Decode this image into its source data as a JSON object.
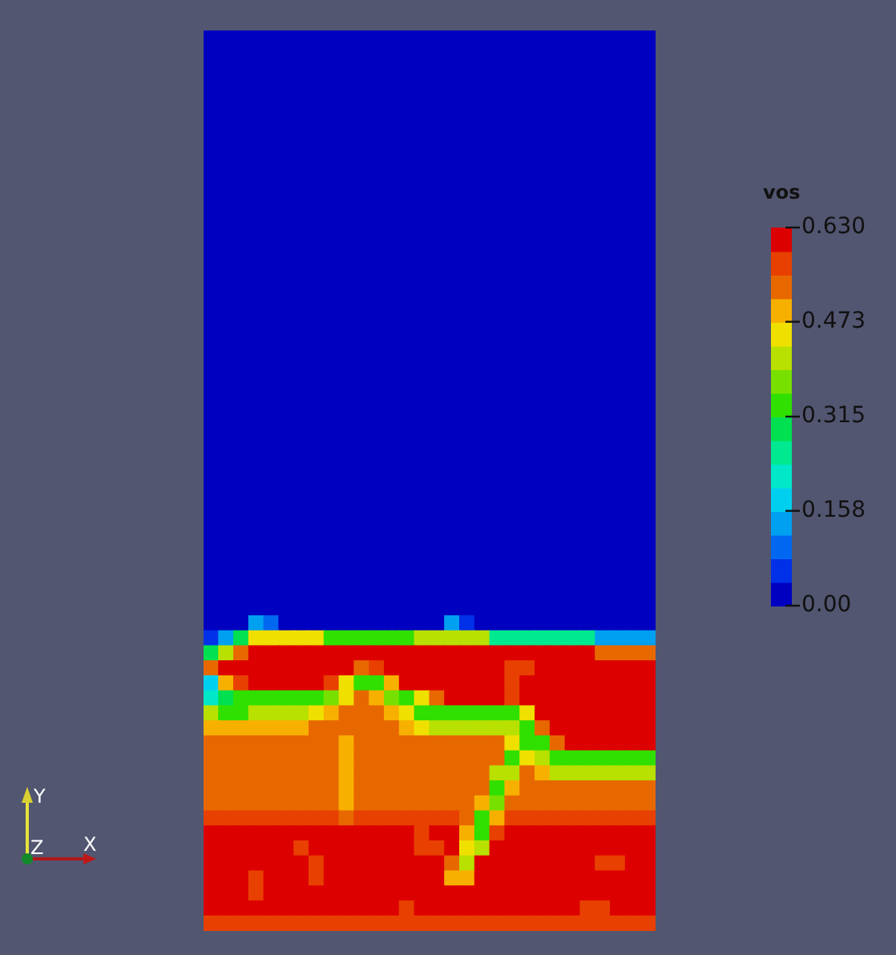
{
  "chart_data": {
    "type": "heatmap",
    "categories": [
      null,
      null,
      null,
      null,
      null,
      null,
      null,
      null,
      null,
      null,
      null,
      null,
      null,
      null,
      null,
      null,
      null,
      null,
      null,
      null,
      null,
      null,
      null,
      null,
      null,
      null,
      null,
      null,
      null,
      null
    ],
    "y_categories": [
      null,
      null,
      null,
      null,
      null,
      null,
      null,
      null,
      null,
      null,
      null,
      null,
      null,
      null,
      null,
      null,
      null,
      null,
      null,
      null,
      null,
      null,
      null,
      null,
      null,
      null,
      null,
      null,
      null,
      null,
      null,
      null,
      null,
      null,
      null,
      null,
      null,
      null,
      null,
      null,
      null,
      null,
      null,
      null,
      null,
      null,
      null,
      null,
      null,
      null,
      null,
      null,
      null,
      null,
      null,
      null,
      null,
      null,
      null,
      null
    ],
    "cells": [
      [
        0,
        0,
        0,
        0,
        0,
        0,
        0,
        0,
        0,
        0,
        0,
        0,
        0,
        0,
        0,
        0,
        0,
        0,
        0,
        0,
        0,
        0,
        0,
        0,
        0,
        0,
        0,
        0,
        0,
        0
      ],
      [
        0,
        0,
        0,
        0,
        0,
        0,
        0,
        0,
        0,
        0,
        0,
        0,
        0,
        0,
        0,
        0,
        0,
        0,
        0,
        0,
        0,
        0,
        0,
        0,
        0,
        0,
        0,
        0,
        0,
        0
      ],
      [
        0,
        0,
        0,
        0,
        0,
        0,
        0,
        0,
        0,
        0,
        0,
        0,
        0,
        0,
        0,
        0,
        0,
        0,
        0,
        0,
        0,
        0,
        0,
        0,
        0,
        0,
        0,
        0,
        0,
        0
      ],
      [
        0,
        0,
        0,
        0,
        0,
        0,
        0,
        0,
        0,
        0,
        0,
        0,
        0,
        0,
        0,
        0,
        0,
        0,
        0,
        0,
        0,
        0,
        0,
        0,
        0,
        0,
        0,
        0,
        0,
        0
      ],
      [
        0,
        0,
        0,
        0,
        0,
        0,
        0,
        0,
        0,
        0,
        0,
        0,
        0,
        0,
        0,
        0,
        0,
        0,
        0,
        0,
        0,
        0,
        0,
        0,
        0,
        0,
        0,
        0,
        0,
        0
      ],
      [
        0,
        0,
        0,
        0,
        0,
        0,
        0,
        0,
        0,
        0,
        0,
        0,
        0,
        0,
        0,
        0,
        0,
        0,
        0,
        0,
        0,
        0,
        0,
        0,
        0,
        0,
        0,
        0,
        0,
        0
      ],
      [
        0,
        0,
        0,
        0,
        0,
        0,
        0,
        0,
        0,
        0,
        0,
        0,
        0,
        0,
        0,
        0,
        0,
        0,
        0,
        0,
        0,
        0,
        0,
        0,
        0,
        0,
        0,
        0,
        0,
        0
      ],
      [
        0,
        0,
        0,
        0,
        0,
        0,
        0,
        0,
        0,
        0,
        0,
        0,
        0,
        0,
        0,
        0,
        0,
        0,
        0,
        0,
        0,
        0,
        0,
        0,
        0,
        0,
        0,
        0,
        0,
        0
      ],
      [
        0,
        0,
        0,
        0,
        0,
        0,
        0,
        0,
        0,
        0,
        0,
        0,
        0,
        0,
        0,
        0,
        0,
        0,
        0,
        0,
        0,
        0,
        0,
        0,
        0,
        0,
        0,
        0,
        0,
        0
      ],
      [
        0,
        0,
        0,
        0,
        0,
        0,
        0,
        0,
        0,
        0,
        0,
        0,
        0,
        0,
        0,
        0,
        0,
        0,
        0,
        0,
        0,
        0,
        0,
        0,
        0,
        0,
        0,
        0,
        0,
        0
      ],
      [
        0,
        0,
        0,
        0,
        0,
        0,
        0,
        0,
        0,
        0,
        0,
        0,
        0,
        0,
        0,
        0,
        0,
        0,
        0,
        0,
        0,
        0,
        0,
        0,
        0,
        0,
        0,
        0,
        0,
        0
      ],
      [
        0,
        0,
        0,
        0,
        0,
        0,
        0,
        0,
        0,
        0,
        0,
        0,
        0,
        0,
        0,
        0,
        0,
        0,
        0,
        0,
        0,
        0,
        0,
        0,
        0,
        0,
        0,
        0,
        0,
        0
      ],
      [
        0,
        0,
        0,
        0,
        0,
        0,
        0,
        0,
        0,
        0,
        0,
        0,
        0,
        0,
        0,
        0,
        0,
        0,
        0,
        0,
        0,
        0,
        0,
        0,
        0,
        0,
        0,
        0,
        0,
        0
      ],
      [
        0,
        0,
        0,
        0,
        0,
        0,
        0,
        0,
        0,
        0,
        0,
        0,
        0,
        0,
        0,
        0,
        0,
        0,
        0,
        0,
        0,
        0,
        0,
        0,
        0,
        0,
        0,
        0,
        0,
        0
      ],
      [
        0,
        0,
        0,
        0,
        0,
        0,
        0,
        0,
        0,
        0,
        0,
        0,
        0,
        0,
        0,
        0,
        0,
        0,
        0,
        0,
        0,
        0,
        0,
        0,
        0,
        0,
        0,
        0,
        0,
        0
      ],
      [
        0,
        0,
        0,
        0,
        0,
        0,
        0,
        0,
        0,
        0,
        0,
        0,
        0,
        0,
        0,
        0,
        0,
        0,
        0,
        0,
        0,
        0,
        0,
        0,
        0,
        0,
        0,
        0,
        0,
        0
      ],
      [
        0,
        0,
        0,
        0,
        0,
        0,
        0,
        0,
        0,
        0,
        0,
        0,
        0,
        0,
        0,
        0,
        0,
        0,
        0,
        0,
        0,
        0,
        0,
        0,
        0,
        0,
        0,
        0,
        0,
        0
      ],
      [
        0,
        0,
        0,
        0,
        0,
        0,
        0,
        0,
        0,
        0,
        0,
        0,
        0,
        0,
        0,
        0,
        0,
        0,
        0,
        0,
        0,
        0,
        0,
        0,
        0,
        0,
        0,
        0,
        0,
        0
      ],
      [
        0,
        0,
        0,
        0,
        0,
        0,
        0,
        0,
        0,
        0,
        0,
        0,
        0,
        0,
        0,
        0,
        0,
        0,
        0,
        0,
        0,
        0,
        0,
        0,
        0,
        0,
        0,
        0,
        0,
        0
      ],
      [
        0,
        0,
        0,
        0,
        0,
        0,
        0,
        0,
        0,
        0,
        0,
        0,
        0,
        0,
        0,
        0,
        0,
        0,
        0,
        0,
        0,
        0,
        0,
        0,
        0,
        0,
        0,
        0,
        0,
        0
      ],
      [
        0,
        0,
        0,
        0,
        0,
        0,
        0,
        0,
        0,
        0,
        0,
        0,
        0,
        0,
        0,
        0,
        0,
        0,
        0,
        0,
        0,
        0,
        0,
        0,
        0,
        0,
        0,
        0,
        0,
        0
      ],
      [
        0,
        0,
        0,
        0,
        0,
        0,
        0,
        0,
        0,
        0,
        0,
        0,
        0,
        0,
        0,
        0,
        0,
        0,
        0,
        0,
        0,
        0,
        0,
        0,
        0,
        0,
        0,
        0,
        0,
        0
      ],
      [
        0,
        0,
        0,
        0,
        0,
        0,
        0,
        0,
        0,
        0,
        0,
        0,
        0,
        0,
        0,
        0,
        0,
        0,
        0,
        0,
        0,
        0,
        0,
        0,
        0,
        0,
        0,
        0,
        0,
        0
      ],
      [
        0,
        0,
        0,
        0,
        0,
        0,
        0,
        0,
        0,
        0,
        0,
        0,
        0,
        0,
        0,
        0,
        0,
        0,
        0,
        0,
        0,
        0,
        0,
        0,
        0,
        0,
        0,
        0,
        0,
        0
      ],
      [
        0,
        0,
        0,
        0,
        0,
        0,
        0,
        0,
        0,
        0,
        0,
        0,
        0,
        0,
        0,
        0,
        0,
        0,
        0,
        0,
        0,
        0,
        0,
        0,
        0,
        0,
        0,
        0,
        0,
        0
      ],
      [
        0,
        0,
        0,
        0,
        0,
        0,
        0,
        0,
        0,
        0,
        0,
        0,
        0,
        0,
        0,
        0,
        0,
        0,
        0,
        0,
        0,
        0,
        0,
        0,
        0,
        0,
        0,
        0,
        0,
        0
      ],
      [
        0,
        0,
        0,
        0,
        0,
        0,
        0,
        0,
        0,
        0,
        0,
        0,
        0,
        0,
        0,
        0,
        0,
        0,
        0,
        0,
        0,
        0,
        0,
        0,
        0,
        0,
        0,
        0,
        0,
        0
      ],
      [
        0,
        0,
        0,
        0,
        0,
        0,
        0,
        0,
        0,
        0,
        0,
        0,
        0,
        0,
        0,
        0,
        0,
        0,
        0,
        0,
        0,
        0,
        0,
        0,
        0,
        0,
        0,
        0,
        0,
        0
      ],
      [
        0,
        0,
        0,
        0,
        0,
        0,
        0,
        0,
        0,
        0,
        0,
        0,
        0,
        0,
        0,
        0,
        0,
        0,
        0,
        0,
        0,
        0,
        0,
        0,
        0,
        0,
        0,
        0,
        0,
        0
      ],
      [
        0,
        0,
        0,
        0,
        0,
        0,
        0,
        0,
        0,
        0,
        0,
        0,
        0,
        0,
        0,
        0,
        0,
        0,
        0,
        0,
        0,
        0,
        0,
        0,
        0,
        0,
        0,
        0,
        0,
        0
      ],
      [
        0,
        0,
        0,
        0,
        0,
        0,
        0,
        0,
        0,
        0,
        0,
        0,
        0,
        0,
        0,
        0,
        0,
        0,
        0,
        0,
        0,
        0,
        0,
        0,
        0,
        0,
        0,
        0,
        0,
        0
      ],
      [
        0,
        0,
        0,
        0,
        0,
        0,
        0,
        0,
        0,
        0,
        0,
        0,
        0,
        0,
        0,
        0,
        0,
        0,
        0,
        0,
        0,
        0,
        0,
        0,
        0,
        0,
        0,
        0,
        0,
        0
      ],
      [
        0,
        0,
        0,
        0,
        0,
        0,
        0,
        0,
        0,
        0,
        0,
        0,
        0,
        0,
        0,
        0,
        0,
        0,
        0,
        0,
        0,
        0,
        0,
        0,
        0,
        0,
        0,
        0,
        0,
        0
      ],
      [
        0,
        0,
        0,
        0,
        0,
        0,
        0,
        0,
        0,
        0,
        0,
        0,
        0,
        0,
        0,
        0,
        0,
        0,
        0,
        0,
        0,
        0,
        0,
        0,
        0,
        0,
        0,
        0,
        0,
        0
      ],
      [
        0,
        0,
        0,
        0,
        0,
        0,
        0,
        0,
        0,
        0,
        0,
        0,
        0,
        0,
        0,
        0,
        0,
        0,
        0,
        0,
        0,
        0,
        0,
        0,
        0,
        0,
        0,
        0,
        0,
        0
      ],
      [
        0,
        0,
        0,
        0,
        0,
        0,
        0,
        0,
        0,
        0,
        0,
        0,
        0,
        0,
        0,
        0,
        0,
        0,
        0,
        0,
        0,
        0,
        0,
        0,
        0,
        0,
        0,
        0,
        0,
        0
      ],
      [
        0,
        0,
        0,
        0,
        0,
        0,
        0,
        0,
        0,
        0,
        0,
        0,
        0,
        0,
        0,
        0,
        0,
        0,
        0,
        0,
        0,
        0,
        0,
        0,
        0,
        0,
        0,
        0,
        0,
        0
      ],
      [
        0,
        0,
        0,
        0,
        0,
        0,
        0,
        0,
        0,
        0,
        0,
        0,
        0,
        0,
        0,
        0,
        0,
        0,
        0,
        0,
        0,
        0,
        0,
        0,
        0,
        0,
        0,
        0,
        0,
        0
      ],
      [
        0,
        0,
        0,
        0,
        0,
        0,
        0,
        0,
        0,
        0,
        0,
        0,
        0,
        0,
        0,
        0,
        0,
        0,
        0,
        0,
        0,
        0,
        0,
        0,
        0,
        0,
        0,
        0,
        0,
        0
      ],
      [
        0,
        0,
        0,
        0.12,
        0.1,
        0,
        0,
        0,
        0,
        0,
        0,
        0,
        0,
        0,
        0,
        0,
        0.15,
        0.05,
        0,
        0,
        0,
        0,
        0,
        0,
        0,
        0,
        0,
        0,
        0,
        0
      ],
      [
        0.05,
        0.12,
        0.3,
        0.45,
        0.45,
        0.45,
        0.45,
        0.45,
        0.35,
        0.35,
        0.35,
        0.35,
        0.35,
        0.35,
        0.4,
        0.4,
        0.4,
        0.4,
        0.4,
        0.25,
        0.25,
        0.25,
        0.25,
        0.25,
        0.25,
        0.25,
        0.15,
        0.15,
        0.15,
        0.15
      ],
      [
        0.3,
        0.42,
        0.55,
        0.62,
        0.62,
        0.62,
        0.62,
        0.62,
        0.62,
        0.62,
        0.62,
        0.62,
        0.62,
        0.62,
        0.62,
        0.62,
        0.62,
        0.62,
        0.62,
        0.6,
        0.6,
        0.6,
        0.6,
        0.6,
        0.6,
        0.6,
        0.55,
        0.55,
        0.55,
        0.55
      ],
      [
        0.55,
        0.62,
        0.62,
        0.62,
        0.62,
        0.62,
        0.62,
        0.62,
        0.62,
        0.62,
        0.55,
        0.58,
        0.62,
        0.62,
        0.62,
        0.62,
        0.62,
        0.62,
        0.62,
        0.62,
        0.58,
        0.58,
        0.62,
        0.62,
        0.62,
        0.62,
        0.62,
        0.62,
        0.62,
        0.62
      ],
      [
        0.18,
        0.5,
        0.58,
        0.62,
        0.62,
        0.62,
        0.62,
        0.62,
        0.58,
        0.45,
        0.33,
        0.33,
        0.5,
        0.6,
        0.62,
        0.62,
        0.62,
        0.62,
        0.62,
        0.62,
        0.58,
        0.62,
        0.62,
        0.62,
        0.62,
        0.62,
        0.62,
        0.62,
        0.62,
        0.62
      ],
      [
        0.2,
        0.3,
        0.35,
        0.35,
        0.33,
        0.33,
        0.35,
        0.33,
        0.38,
        0.45,
        0.52,
        0.48,
        0.38,
        0.35,
        0.45,
        0.55,
        0.6,
        0.6,
        0.6,
        0.6,
        0.58,
        0.62,
        0.62,
        0.62,
        0.62,
        0.62,
        0.62,
        0.62,
        0.62,
        0.62
      ],
      [
        0.4,
        0.35,
        0.35,
        0.4,
        0.4,
        0.4,
        0.4,
        0.45,
        0.5,
        0.52,
        0.54,
        0.54,
        0.5,
        0.45,
        0.35,
        0.33,
        0.33,
        0.33,
        0.33,
        0.33,
        0.35,
        0.45,
        0.62,
        0.62,
        0.62,
        0.62,
        0.62,
        0.62,
        0.62,
        0.62
      ],
      [
        0.5,
        0.48,
        0.48,
        0.5,
        0.5,
        0.5,
        0.5,
        0.52,
        0.54,
        0.52,
        0.54,
        0.54,
        0.54,
        0.5,
        0.45,
        0.42,
        0.42,
        0.42,
        0.42,
        0.42,
        0.4,
        0.35,
        0.55,
        0.62,
        0.62,
        0.62,
        0.62,
        0.62,
        0.62,
        0.62
      ],
      [
        0.54,
        0.54,
        0.54,
        0.54,
        0.54,
        0.54,
        0.54,
        0.54,
        0.54,
        0.5,
        0.54,
        0.54,
        0.54,
        0.54,
        0.52,
        0.52,
        0.52,
        0.52,
        0.52,
        0.52,
        0.45,
        0.33,
        0.35,
        0.55,
        0.6,
        0.6,
        0.6,
        0.6,
        0.6,
        0.6
      ],
      [
        0.54,
        0.54,
        0.54,
        0.54,
        0.54,
        0.54,
        0.54,
        0.54,
        0.54,
        0.5,
        0.54,
        0.54,
        0.54,
        0.54,
        0.54,
        0.54,
        0.54,
        0.54,
        0.54,
        0.54,
        0.35,
        0.45,
        0.4,
        0.33,
        0.35,
        0.35,
        0.35,
        0.35,
        0.35,
        0.35
      ],
      [
        0.54,
        0.54,
        0.54,
        0.54,
        0.54,
        0.54,
        0.54,
        0.54,
        0.54,
        0.5,
        0.54,
        0.54,
        0.54,
        0.54,
        0.54,
        0.54,
        0.54,
        0.54,
        0.54,
        0.4,
        0.4,
        0.52,
        0.5,
        0.4,
        0.4,
        0.4,
        0.4,
        0.4,
        0.4,
        0.4
      ],
      [
        0.54,
        0.54,
        0.54,
        0.54,
        0.54,
        0.54,
        0.54,
        0.54,
        0.54,
        0.5,
        0.54,
        0.54,
        0.54,
        0.54,
        0.54,
        0.54,
        0.54,
        0.54,
        0.54,
        0.35,
        0.5,
        0.54,
        0.54,
        0.52,
        0.52,
        0.52,
        0.52,
        0.52,
        0.52,
        0.52
      ],
      [
        0.54,
        0.54,
        0.54,
        0.54,
        0.54,
        0.54,
        0.54,
        0.54,
        0.54,
        0.5,
        0.54,
        0.54,
        0.54,
        0.54,
        0.54,
        0.54,
        0.54,
        0.54,
        0.48,
        0.38,
        0.54,
        0.54,
        0.54,
        0.54,
        0.54,
        0.54,
        0.54,
        0.54,
        0.54,
        0.54
      ],
      [
        0.58,
        0.58,
        0.58,
        0.58,
        0.58,
        0.58,
        0.58,
        0.58,
        0.58,
        0.54,
        0.56,
        0.56,
        0.56,
        0.56,
        0.56,
        0.56,
        0.56,
        0.54,
        0.35,
        0.5,
        0.58,
        0.58,
        0.58,
        0.58,
        0.58,
        0.58,
        0.58,
        0.58,
        0.58,
        0.58
      ],
      [
        0.6,
        0.6,
        0.6,
        0.6,
        0.6,
        0.6,
        0.6,
        0.6,
        0.6,
        0.62,
        0.62,
        0.62,
        0.62,
        0.62,
        0.56,
        0.62,
        0.62,
        0.5,
        0.33,
        0.58,
        0.62,
        0.62,
        0.62,
        0.62,
        0.62,
        0.62,
        0.62,
        0.62,
        0.62,
        0.62
      ],
      [
        0.62,
        0.62,
        0.62,
        0.62,
        0.62,
        0.62,
        0.56,
        0.62,
        0.62,
        0.62,
        0.62,
        0.62,
        0.62,
        0.62,
        0.56,
        0.56,
        0.62,
        0.45,
        0.4,
        0.62,
        0.62,
        0.62,
        0.62,
        0.62,
        0.62,
        0.62,
        0.62,
        0.62,
        0.62,
        0.62
      ],
      [
        0.62,
        0.62,
        0.62,
        0.62,
        0.62,
        0.62,
        0.62,
        0.56,
        0.62,
        0.62,
        0.62,
        0.62,
        0.62,
        0.62,
        0.62,
        0.62,
        0.52,
        0.4,
        0.62,
        0.62,
        0.62,
        0.62,
        0.62,
        0.62,
        0.62,
        0.62,
        0.56,
        0.56,
        0.62,
        0.62
      ],
      [
        0.62,
        0.62,
        0.62,
        0.58,
        0.62,
        0.62,
        0.62,
        0.56,
        0.62,
        0.62,
        0.62,
        0.62,
        0.62,
        0.62,
        0.62,
        0.62,
        0.48,
        0.5,
        0.62,
        0.62,
        0.62,
        0.62,
        0.62,
        0.62,
        0.62,
        0.62,
        0.62,
        0.62,
        0.62,
        0.62
      ],
      [
        0.62,
        0.62,
        0.62,
        0.56,
        0.62,
        0.62,
        0.62,
        0.62,
        0.62,
        0.62,
        0.62,
        0.62,
        0.62,
        0.62,
        0.62,
        0.62,
        0.62,
        0.62,
        0.62,
        0.62,
        0.62,
        0.62,
        0.62,
        0.62,
        0.62,
        0.62,
        0.62,
        0.62,
        0.62,
        0.62
      ],
      [
        0.62,
        0.62,
        0.62,
        0.62,
        0.62,
        0.62,
        0.62,
        0.62,
        0.62,
        0.62,
        0.62,
        0.62,
        0.62,
        0.56,
        0.62,
        0.62,
        0.62,
        0.62,
        0.62,
        0.62,
        0.62,
        0.62,
        0.62,
        0.62,
        0.62,
        0.56,
        0.56,
        0.62,
        0.62,
        0.62
      ],
      [
        0.58,
        0.58,
        0.58,
        0.58,
        0.58,
        0.58,
        0.58,
        0.58,
        0.58,
        0.58,
        0.58,
        0.58,
        0.58,
        0.58,
        0.58,
        0.58,
        0.58,
        0.58,
        0.58,
        0.58,
        0.58,
        0.58,
        0.58,
        0.58,
        0.58,
        0.56,
        0.56,
        0.58,
        0.58,
        0.58
      ]
    ],
    "clim": [
      0,
      0.63
    ],
    "cticks": [
      {
        "value": 0,
        "label": "0.00"
      },
      0.158,
      0.315,
      0.473,
      {
        "value": 0.63,
        "label": "0.630"
      }
    ],
    "clabel": "vos",
    "annotations": [
      "Y",
      "Z",
      "X"
    ],
    "tick_labels": false
  }
}
